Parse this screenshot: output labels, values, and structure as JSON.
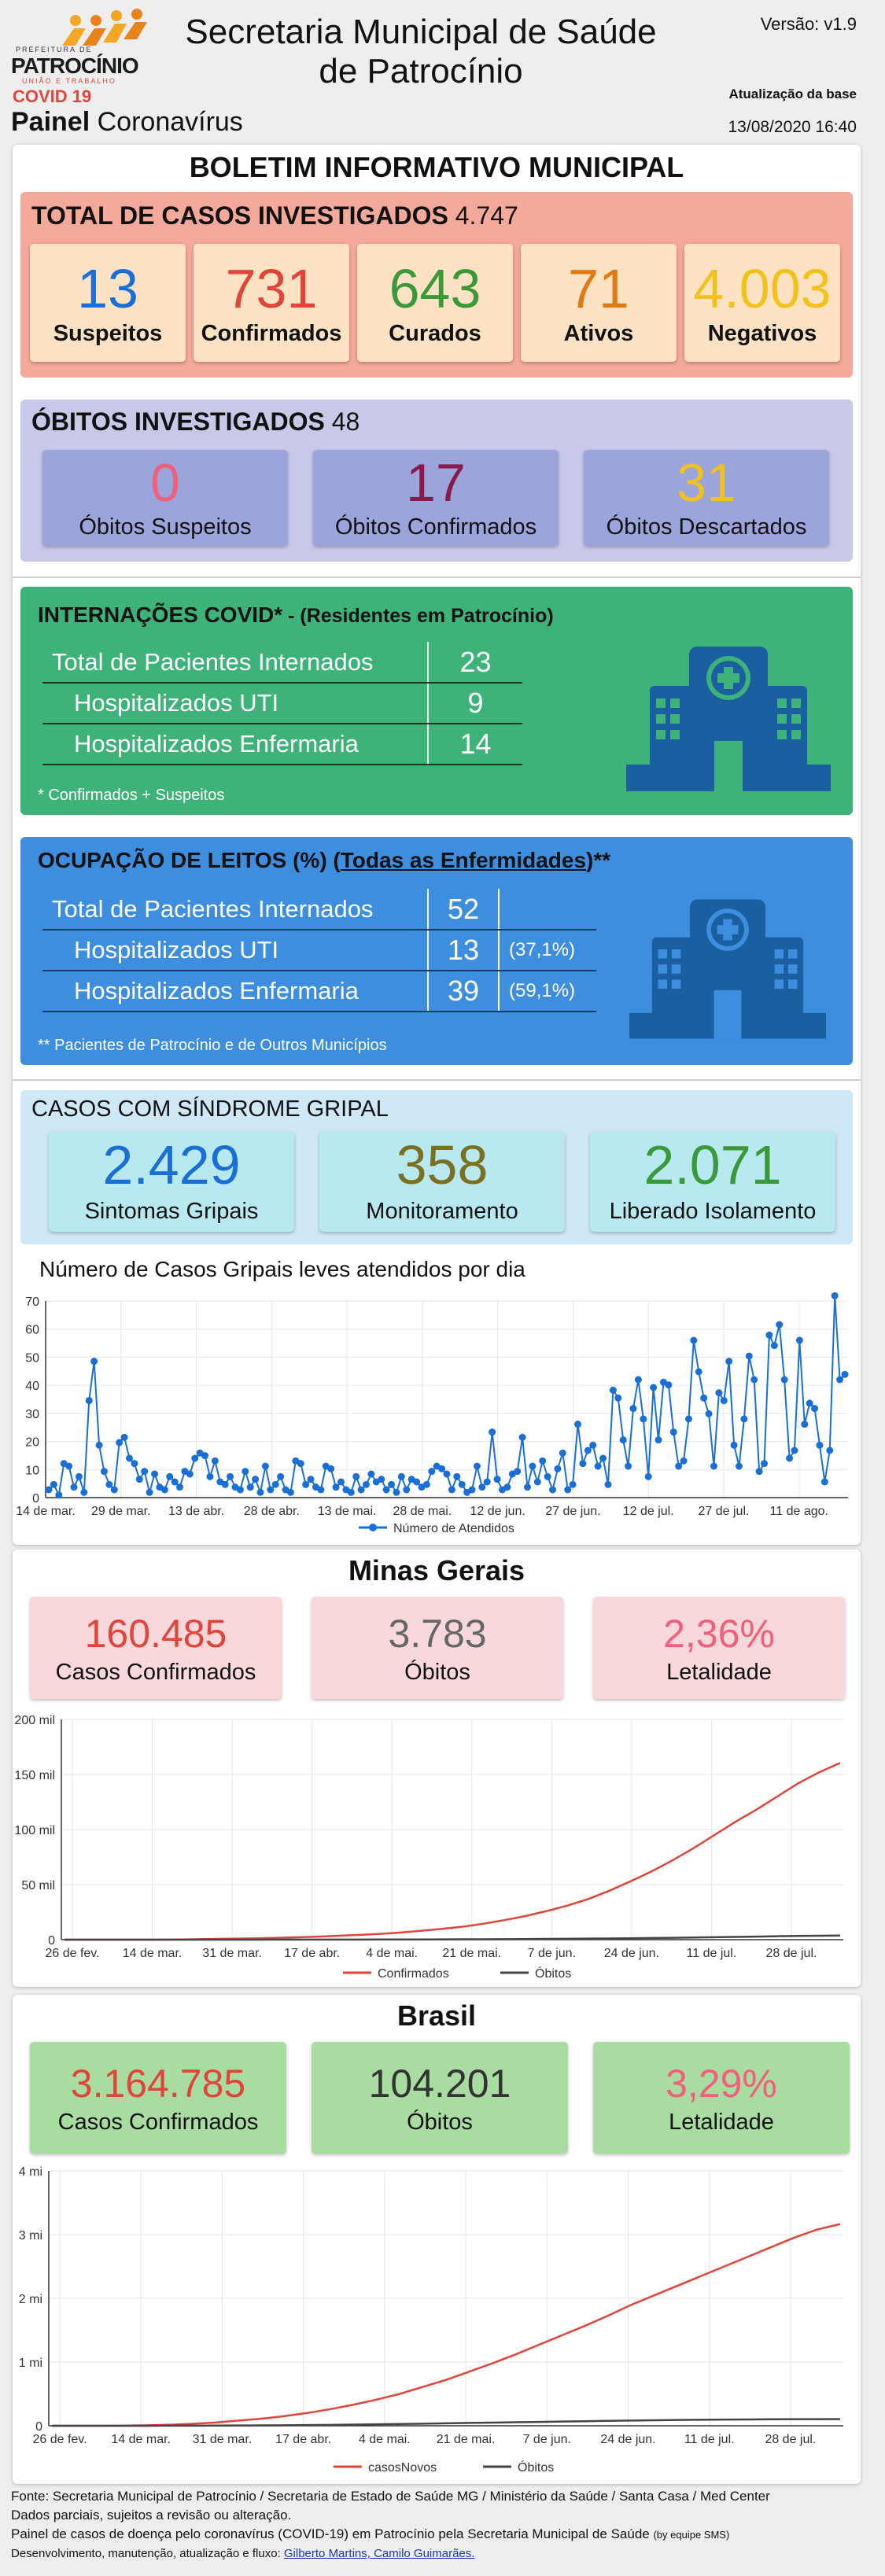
{
  "header": {
    "logo_text": "PATROCÍNIO",
    "logo_sub": "UNIÃO E TRABALHO",
    "logo_top": "PREFEITURA DE",
    "covid_label": "COVID 19",
    "title_line1": "Secretaria Municipal de Saúde",
    "title_line2": "de Patrocínio",
    "version": "Versão: v1.9",
    "update_label": "Atualização da base",
    "update_date": "13/08/2020 16:40",
    "panel_bold": "Painel",
    "panel_rest": " Coronavírus"
  },
  "bulletin": {
    "title": "BOLETIM INFORMATIVO MUNICIPAL",
    "cases_label": "TOTAL DE CASOS INVESTIGADOS",
    "cases_total": "4.747",
    "stats": [
      {
        "value": "13",
        "label": "Suspeitos",
        "color": "#1a6fd6"
      },
      {
        "value": "731",
        "label": "Confirmados",
        "color": "#e0453a"
      },
      {
        "value": "643",
        "label": "Curados",
        "color": "#3a9a3a"
      },
      {
        "value": "71",
        "label": "Ativos",
        "color": "#e07a10"
      },
      {
        "value": "4.003",
        "label": "Negativos",
        "color": "#f2c21a"
      }
    ],
    "deaths_label": "ÓBITOS INVESTIGADOS",
    "deaths_total": "48",
    "deaths": [
      {
        "value": "0",
        "label": "Óbitos Suspeitos",
        "color": "#f0607a"
      },
      {
        "value": "17",
        "label": "Óbitos Confirmados",
        "color": "#8a1a4a"
      },
      {
        "value": "31",
        "label": "Óbitos Descartados",
        "color": "#f2c21a"
      }
    ]
  },
  "internacoes": {
    "title_bold": "INTERNAÇÕES COVID*",
    "title_rest": " - (Residentes em Patrocínio)",
    "rows": [
      {
        "label": "Total de Pacientes Internados",
        "value": "23"
      },
      {
        "label": "Hospitalizados UTI",
        "value": "9"
      },
      {
        "label": "Hospitalizados Enfermaria",
        "value": "14"
      }
    ],
    "note": "* Confirmados + Suspeitos"
  },
  "ocupacao": {
    "title_a": "OCUPAÇÃO DE LEITOS (%) (",
    "title_u": "Todas as Enfermidades",
    "title_b": ")**",
    "rows": [
      {
        "label": "Total de Pacientes Internados",
        "value": "52",
        "pct": ""
      },
      {
        "label": "Hospitalizados UTI",
        "value": "13",
        "pct": "(37,1%)"
      },
      {
        "label": "Hospitalizados Enfermaria",
        "value": "39",
        "pct": "(59,1%)"
      }
    ],
    "note": "** Pacientes de Patrocínio e de Outros Municípios"
  },
  "gripal": {
    "title": "CASOS COM SÍNDROME GRIPAL",
    "stats": [
      {
        "value": "2.429",
        "label": "Sintomas Gripais",
        "color": "#1a6fd6"
      },
      {
        "value": "358",
        "label": "Monitoramento",
        "color": "#7a7020"
      },
      {
        "value": "2.071",
        "label": "Liberado Isolamento",
        "color": "#3a9a3a"
      }
    ],
    "chart_title": "Número de Casos Gripais leves atendidos por dia"
  },
  "minas": {
    "title": "Minas Gerais",
    "stats": [
      {
        "value": "160.485",
        "label": "Casos Confirmados",
        "color": "#e0453a"
      },
      {
        "value": "3.783",
        "label": "Óbitos",
        "color": "#666666"
      },
      {
        "value": "2,36%",
        "label": "Letalidade",
        "color": "#f0607a"
      }
    ]
  },
  "brasil": {
    "title": "Brasil",
    "stats": [
      {
        "value": "3.164.785",
        "label": "Casos Confirmados",
        "color": "#e0453a"
      },
      {
        "value": "104.201",
        "label": "Óbitos",
        "color": "#333333"
      },
      {
        "value": "3,29%",
        "label": "Letalidade",
        "color": "#f0607a"
      }
    ]
  },
  "footer": {
    "line1": "Fonte: Secretaria Municipal de Patrocínio / Secretaria de Estado de Saúde MG / Ministério da Saúde / Santa Casa / Med Center",
    "line2": "Dados parciais, sujeitos a revisão ou alteração.",
    "line3": "Painel de casos de doença pelo coronavírus (COVID-19) em Patrocínio pela Secretaria Municipal de Saúde",
    "line3_small": "(by equipe SMS)",
    "line4": "Desenvolvimento, manutenção, atualização e fluxo: ",
    "line4_link": "Gilberto Martins, Camilo Guimarães."
  },
  "chart_data": [
    {
      "type": "line",
      "title": "Número de Casos Gripais leves atendidos por dia",
      "x_ticks": [
        "14 de mar.",
        "29 de mar.",
        "13 de abr.",
        "28 de abr.",
        "13 de mai.",
        "28 de mai.",
        "12 de jun.",
        "27 de jun.",
        "12 de jul.",
        "27 de jul.",
        "11 de ago."
      ],
      "y_ticks": [
        "0",
        "10",
        "20",
        "30",
        "40",
        "50",
        "60",
        "70"
      ],
      "ylim": [
        0,
        75
      ],
      "series": [
        {
          "name": "Número de Atendidos",
          "color": "#1a6fd6",
          "values": [
            3,
            5,
            1,
            13,
            12,
            4,
            8,
            2,
            37,
            52,
            20,
            10,
            5,
            3,
            21,
            23,
            15,
            13,
            7,
            10,
            2,
            9,
            4,
            3,
            8,
            6,
            4,
            10,
            9,
            15,
            17,
            16,
            8,
            14,
            6,
            5,
            8,
            4,
            3,
            10,
            4,
            7,
            2,
            12,
            3,
            5,
            8,
            3,
            2,
            14,
            13,
            5,
            7,
            4,
            3,
            12,
            11,
            4,
            6,
            3,
            2,
            8,
            3,
            5,
            9,
            6,
            7,
            3,
            5,
            2,
            8,
            3,
            7,
            6,
            4,
            5,
            10,
            12,
            11,
            9,
            3,
            8,
            5,
            2,
            3,
            12,
            4,
            6,
            25,
            7,
            3,
            4,
            9,
            10,
            23,
            4,
            12,
            6,
            14,
            8,
            3,
            11,
            17,
            3,
            5,
            28,
            13,
            18,
            20,
            12,
            15,
            5,
            41,
            38,
            22,
            12,
            34,
            45,
            30,
            8,
            42,
            22,
            44,
            43,
            25,
            12,
            14,
            30,
            60,
            48,
            38,
            32,
            12,
            40,
            37,
            52,
            20,
            12,
            30,
            54,
            45,
            10,
            13,
            62,
            58,
            66,
            45,
            15,
            18,
            60,
            28,
            36,
            34,
            20,
            6,
            18,
            77,
            45,
            47
          ]
        }
      ]
    },
    {
      "type": "line",
      "x_ticks": [
        "26 de fev.",
        "14 de mar.",
        "31 de mar.",
        "17 de abr.",
        "4 de mai.",
        "21 de mai.",
        "7 de jun.",
        "24 de jun.",
        "11 de jul.",
        "28 de jul."
      ],
      "y_ticks": [
        "0",
        "50 mil",
        "100 mil",
        "150 mil",
        "200 mil"
      ],
      "ylim": [
        0,
        200000
      ],
      "series": [
        {
          "name": "Confirmados",
          "color": "#e0453a",
          "values": [
            0,
            0,
            0,
            0,
            0,
            100,
            300,
            600,
            900,
            1200,
            1600,
            2100,
            2700,
            3500,
            4300,
            5200,
            6400,
            8000,
            9800,
            11800,
            14500,
            17800,
            21500,
            26000,
            31000,
            37000,
            44500,
            53000,
            62000,
            72000,
            83000,
            95000,
            107000,
            118000,
            130000,
            142000,
            152000,
            160485
          ]
        },
        {
          "name": "Óbitos",
          "color": "#444444",
          "values": [
            0,
            0,
            0,
            0,
            0,
            0,
            10,
            20,
            30,
            40,
            50,
            60,
            80,
            100,
            120,
            150,
            180,
            220,
            270,
            330,
            400,
            480,
            570,
            680,
            800,
            940,
            1100,
            1280,
            1480,
            1700,
            1950,
            2200,
            2500,
            2800,
            3100,
            3400,
            3600,
            3783
          ]
        }
      ]
    },
    {
      "type": "line",
      "x_ticks": [
        "26 de fev.",
        "14 de mar.",
        "31 de mar.",
        "17 de abr.",
        "4 de mai.",
        "21 de mai.",
        "7 de jun.",
        "24 de jun.",
        "11 de jul.",
        "28 de jul."
      ],
      "y_ticks": [
        "0",
        "1 mi",
        "2 mi",
        "3 mi",
        "4 mi"
      ],
      "ylim": [
        0,
        4000000
      ],
      "series": [
        {
          "name": "casosNovos",
          "color": "#e0453a",
          "values": [
            0,
            0,
            0,
            2000,
            6000,
            15000,
            30000,
            50000,
            80000,
            110000,
            150000,
            200000,
            260000,
            330000,
            410000,
            500000,
            610000,
            720000,
            850000,
            980000,
            1120000,
            1270000,
            1420000,
            1570000,
            1730000,
            1900000,
            2050000,
            2200000,
            2350000,
            2500000,
            2650000,
            2800000,
            2950000,
            3080000,
            3164785
          ]
        },
        {
          "name": "Óbitos",
          "color": "#444444",
          "values": [
            0,
            0,
            0,
            100,
            300,
            800,
            1500,
            2500,
            4000,
            5800,
            8000,
            11000,
            14500,
            18500,
            23000,
            28000,
            33000,
            38500,
            44000,
            49500,
            55000,
            60500,
            66000,
            71500,
            77000,
            82000,
            86500,
            90500,
            94000,
            97000,
            99500,
            101500,
            103000,
            103800,
            104201
          ]
        }
      ]
    }
  ]
}
